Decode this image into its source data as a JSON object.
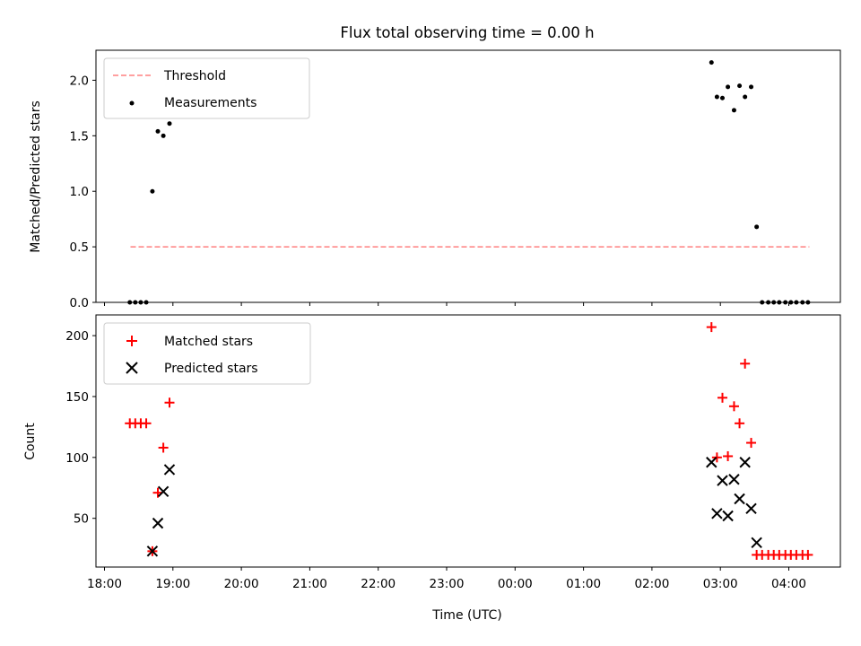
{
  "chart_data": {
    "type": "scatter",
    "title": "Flux total observing time = 0.00 h",
    "xlabel": "Time (UTC)",
    "x_ticks": [
      "18:00",
      "19:00",
      "20:00",
      "21:00",
      "22:00",
      "23:00",
      "00:00",
      "01:00",
      "02:00",
      "03:00",
      "04:00"
    ],
    "top": {
      "ylabel": "Matched/Predicted stars",
      "ylim": [
        0,
        2.27
      ],
      "y_ticks": [
        "0.0",
        "0.5",
        "1.0",
        "1.5",
        "2.0"
      ],
      "threshold": {
        "name": "Threshold",
        "value": 0.5,
        "x_start_h": 18.38,
        "x_end_h": 28.3,
        "color": "#ff8080"
      },
      "measurements": {
        "name": "Measurements",
        "color": "#000000",
        "x_h": [
          18.37,
          18.45,
          18.53,
          18.61,
          18.7,
          18.78,
          18.86,
          18.95,
          26.87,
          26.95,
          27.03,
          27.11,
          27.2,
          27.28,
          27.36,
          27.45,
          27.53,
          27.61,
          27.7,
          27.78,
          27.86,
          27.95,
          28.03,
          28.11,
          28.2,
          28.28
        ],
        "y": [
          0,
          0,
          0,
          0,
          1.0,
          1.54,
          1.5,
          1.61,
          2.16,
          1.85,
          1.84,
          1.94,
          1.73,
          1.95,
          1.85,
          1.94,
          0.68,
          0,
          0,
          0,
          0,
          0,
          0,
          0,
          0,
          0
        ]
      }
    },
    "bottom": {
      "ylabel": "Count",
      "ylim": [
        10,
        217
      ],
      "y_ticks": [
        "50",
        "100",
        "150",
        "200"
      ],
      "matched": {
        "name": "Matched stars",
        "color": "#ff0000",
        "x_h": [
          18.37,
          18.45,
          18.53,
          18.61,
          18.7,
          18.78,
          18.86,
          18.95,
          26.87,
          26.95,
          27.03,
          27.11,
          27.2,
          27.28,
          27.36,
          27.45,
          27.53,
          27.61,
          27.7,
          27.78,
          27.86,
          27.95,
          28.03,
          28.11,
          28.2,
          28.28
        ],
        "y": [
          128,
          128,
          128,
          128,
          23,
          71,
          108,
          145,
          207,
          100,
          149,
          101,
          142,
          128,
          177,
          112,
          20,
          20,
          20,
          20,
          20,
          20,
          20,
          20,
          20,
          20
        ]
      },
      "predicted": {
        "name": "Predicted stars",
        "color": "#000000",
        "x_h": [
          18.7,
          18.78,
          18.86,
          18.95,
          26.87,
          26.95,
          27.03,
          27.11,
          27.2,
          27.28,
          27.36,
          27.45,
          27.53
        ],
        "y": [
          23,
          46,
          72,
          90,
          96,
          54,
          81,
          52,
          82,
          66,
          96,
          58,
          30
        ]
      }
    }
  }
}
